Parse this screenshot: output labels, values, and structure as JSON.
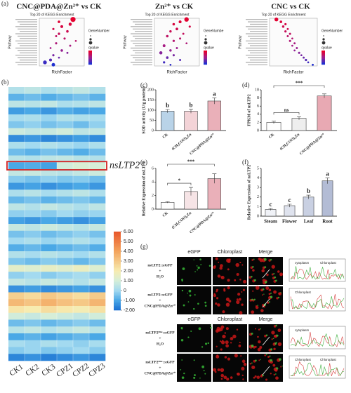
{
  "panel_labels": [
    "(a)",
    "(b)",
    "(c)",
    "(d)",
    "(e)",
    "(f)",
    "(g)"
  ],
  "chart_data": [
    {
      "type": "dot",
      "title": "CNC@PDA@Zn²⁺ vs CK",
      "subtitle": "Top 20 of KEGG Enrichment",
      "x_label": "RichFactor",
      "y_label": "Pathway",
      "size_legend": "GeneNumber",
      "color_legend": "qvalue",
      "values": [
        0.22,
        0.17,
        0.21,
        0.18,
        0.15,
        0.2,
        0.17,
        0.16,
        0.19,
        0.23,
        0.16,
        0.21,
        0.14,
        0.18,
        0.2,
        0.15,
        0.17,
        0.14,
        0.12,
        0.15
      ],
      "sizes": [
        60,
        20,
        30,
        25,
        15,
        20,
        18,
        12,
        15,
        10,
        14,
        12,
        10,
        20,
        12,
        15,
        10,
        25,
        40,
        35
      ],
      "qvalues": [
        0.01,
        0.03,
        0.05,
        0.06,
        0.08,
        0.1,
        0.12,
        0.14,
        0.15,
        0.17,
        0.2,
        0.22,
        0.24,
        0.27,
        0.3,
        0.33,
        0.36,
        0.4,
        0.45,
        0.5
      ],
      "xlim": [
        0.1,
        0.26
      ],
      "qlim": [
        0,
        0.5
      ]
    },
    {
      "type": "dot",
      "title": "Zn²⁺ vs CK",
      "subtitle": "Top 20 of KEGG Enrichment",
      "x_label": "RichFactor",
      "y_label": "Pathway",
      "size_legend": "GeneNumbe",
      "color_legend": "qvalue",
      "values": [
        0.2,
        0.18,
        0.16,
        0.21,
        0.17,
        0.15,
        0.19,
        0.14,
        0.18,
        0.16,
        0.2,
        0.13,
        0.17,
        0.15,
        0.12,
        0.16,
        0.14,
        0.18,
        0.13,
        0.15
      ],
      "sizes": [
        50,
        25,
        20,
        15,
        22,
        18,
        12,
        20,
        14,
        16,
        10,
        24,
        12,
        18,
        30,
        14,
        20,
        12,
        16,
        10
      ],
      "qvalues": [
        0.02,
        0.04,
        0.06,
        0.08,
        0.1,
        0.12,
        0.14,
        0.16,
        0.18,
        0.2,
        0.22,
        0.25,
        0.28,
        0.3,
        0.33,
        0.36,
        0.4,
        0.44,
        0.48,
        0.52
      ],
      "xlim": [
        0.1,
        0.24
      ],
      "qlim": [
        0,
        0.55
      ]
    },
    {
      "type": "dot",
      "title": "CNC vs CK",
      "subtitle": "Top 20 of KEGG Enrichment",
      "x_label": "RichFactor",
      "y_label": "Pathway",
      "size_legend": "GeneNumber",
      "color_legend": "qvalue",
      "values": [
        0.08,
        0.1,
        0.12,
        0.11,
        0.13,
        0.12,
        0.14,
        0.13,
        0.15,
        0.14,
        0.16,
        0.15,
        0.17,
        0.16,
        0.18,
        0.19,
        0.2,
        0.21,
        0.22,
        0.24
      ],
      "sizes": [
        40,
        20,
        15,
        18,
        12,
        16,
        14,
        12,
        10,
        14,
        12,
        10,
        12,
        10,
        14,
        10,
        12,
        16,
        10,
        12
      ],
      "qvalues": [
        0.02,
        0.05,
        0.07,
        0.09,
        0.1,
        0.12,
        0.14,
        0.16,
        0.18,
        0.2,
        0.22,
        0.24,
        0.26,
        0.28,
        0.3,
        0.33,
        0.36,
        0.4,
        0.44,
        0.5
      ],
      "xlim": [
        0.05,
        0.26
      ],
      "qlim": [
        0,
        0.5
      ]
    },
    {
      "type": "heatmap",
      "columns": [
        "CK1",
        "CK2",
        "CK3",
        "CPZ1",
        "CPZ2",
        "CPZ3"
      ],
      "highlight_label": "nsLTP2",
      "highlight_row": 11,
      "colorscale": [
        [
          -2,
          "#1a6fd1"
        ],
        [
          -1,
          "#4aa8e6"
        ],
        [
          0,
          "#a3daf0"
        ],
        [
          1,
          "#d6eed8"
        ],
        [
          2,
          "#f7ecb0"
        ],
        [
          4,
          "#f3a35c"
        ],
        [
          6,
          "#e8562a"
        ]
      ],
      "clim": [
        -2,
        6
      ],
      "cticks": [
        {
          "value": 6,
          "label": "6.00"
        },
        {
          "value": 5,
          "label": "5.00"
        },
        {
          "value": 4,
          "label": "4.00"
        },
        {
          "value": 3,
          "label": "3.00"
        },
        {
          "value": 2,
          "label": "2.00"
        },
        {
          "value": 1,
          "label": "1.00"
        },
        0,
        {
          "value": -1,
          "label": "-1.00"
        },
        {
          "value": -2,
          "label": "-2.00"
        }
      ],
      "values": [
        [
          0.3,
          0.5,
          0.2,
          0.4,
          0.6,
          0.3
        ],
        [
          -0.8,
          -0.6,
          -0.9,
          -0.7,
          -0.5,
          -0.8
        ],
        [
          0.5,
          0.4,
          0.6,
          0.2,
          0.3,
          0.5
        ],
        [
          -1.2,
          -1,
          -1.3,
          -0.9,
          -1.1,
          -1
        ],
        [
          0.1,
          0.2,
          -0.1,
          0.3,
          0.2,
          0.1
        ],
        [
          -0.4,
          -0.2,
          -0.5,
          -0.3,
          -0.6,
          -0.2
        ],
        [
          0.8,
          0.6,
          0.7,
          0.9,
          0.5,
          0.6
        ],
        [
          -1.5,
          -1.3,
          -1.6,
          -1.4,
          -1.2,
          -1.5
        ],
        [
          0.2,
          0,
          0.3,
          0.1,
          -0.1,
          0.2
        ],
        [
          -0.6,
          -0.8,
          -0.5,
          -0.7,
          -0.9,
          -0.6
        ],
        [
          0.4,
          0.3,
          0.5,
          0.6,
          0.4,
          0.3
        ],
        [
          -1,
          -0.9,
          -1.1,
          0.9,
          1.1,
          1
        ],
        [
          0.6,
          0.7,
          0.5,
          0.4,
          0.6,
          0.8
        ],
        [
          -0.3,
          -0.5,
          -0.2,
          -0.4,
          -0.3,
          -0.6
        ],
        [
          -1.3,
          -1.1,
          -1.4,
          -1.2,
          -1,
          -1.3
        ],
        [
          0.2,
          0.4,
          0.1,
          0.3,
          0.5,
          0.2
        ],
        [
          -0.7,
          -0.5,
          -0.8,
          -0.6,
          -0.4,
          -0.7
        ],
        [
          0.5,
          0.3,
          0.6,
          0.4,
          0.2,
          0.5
        ],
        [
          -0.2,
          -0.1,
          -0.3,
          0,
          -0.2,
          -0.1
        ],
        [
          -1.1,
          -1.3,
          -1,
          -1.2,
          -1.4,
          -1.1
        ],
        [
          0.7,
          0.5,
          0.8,
          0.6,
          0.4,
          0.7
        ],
        [
          -0.5,
          -0.3,
          -0.6,
          -0.4,
          -0.2,
          -0.5
        ],
        [
          0,
          0.2,
          -0.1,
          0.1,
          0.3,
          0
        ],
        [
          -0.9,
          -0.7,
          -1,
          -0.8,
          -0.6,
          -0.9
        ],
        [
          0.3,
          0.1,
          0.4,
          0.2,
          0,
          0.3
        ],
        [
          -0.4,
          -0.6,
          -0.3,
          -0.5,
          -0.7,
          -0.4
        ],
        [
          1.4,
          1.2,
          1.5,
          1.3,
          1.6,
          1.2
        ],
        [
          -0.2,
          0,
          -0.3,
          -0.1,
          0.1,
          -0.2
        ],
        [
          0.6,
          0.4,
          0.7,
          0.5,
          0.3,
          0.6
        ],
        [
          -1.4,
          -1.2,
          -1.5,
          -1.3,
          -1.1,
          -1.4
        ],
        [
          2.8,
          2.5,
          3,
          2.7,
          2.4,
          2.9
        ],
        [
          3.4,
          3.1,
          3.6,
          3.2,
          3,
          3.5
        ],
        [
          2.2,
          2,
          2.4,
          2.1,
          1.9,
          2.3
        ],
        [
          0.9,
          0.7,
          1,
          0.8,
          0.6,
          0.9
        ],
        [
          -0.6,
          -0.4,
          -0.7,
          -0.5,
          -0.3,
          -0.6
        ],
        [
          0.4,
          0.6,
          0.3,
          0.5,
          0.7,
          0.4
        ],
        [
          -1,
          -0.8,
          -1.1,
          -0.9,
          -0.7,
          -1
        ],
        [
          0.1,
          -0.1,
          0.2,
          0,
          -0.2,
          0.1
        ],
        [
          -0.3,
          -0.1,
          -0.4,
          -0.2,
          0,
          -0.3
        ],
        [
          -1.6,
          -1.4,
          -1.7,
          -1.5,
          -1.3,
          -1.6
        ]
      ]
    },
    {
      "type": "bar",
      "y_label": "SOD activity (U/g protein)",
      "categories": [
        "CK",
        "(CH₃COO)₂Zn",
        "CNC@PDA@Zn²⁺"
      ],
      "values": [
        95,
        95,
        145
      ],
      "errors": [
        8,
        10,
        15
      ],
      "letters": [
        "b",
        "b",
        "a"
      ],
      "colors": [
        "#b9d3e8",
        "#f3d3d7",
        "#eab0b9"
      ],
      "ylim": [
        0,
        200
      ],
      "yticks": [
        0,
        50,
        100,
        150,
        200
      ]
    },
    {
      "type": "bar",
      "y_label": "FPKM of nsLTP2",
      "categories": [
        "CK",
        "(CH₃COO)₂Zn",
        "CNC@PDA@Zn²⁺"
      ],
      "values": [
        2,
        3,
        8.5
      ],
      "errors": [
        0.3,
        0.4,
        0.5
      ],
      "colors": [
        "#ffffff",
        "#eeeeee",
        "#e8a9b3"
      ],
      "comparisons": [
        {
          "label": "ns",
          "from": 0,
          "to": 1
        },
        {
          "label": "***",
          "from": 0,
          "to": 2
        }
      ],
      "ylim": [
        0,
        10
      ],
      "yticks": [
        0,
        2,
        4,
        6,
        8,
        10
      ]
    },
    {
      "type": "bar",
      "y_label": "Relative Expression of nsLTP2",
      "categories": [
        "CK",
        "(CH₃COO)₂Zn",
        "CNC@PDA@Zn²⁺"
      ],
      "values": [
        1,
        2.6,
        4.5
      ],
      "errors": [
        0.1,
        0.6,
        0.7
      ],
      "colors": [
        "#ffffff",
        "#f6e4e6",
        "#eab0b9"
      ],
      "comparisons": [
        {
          "label": "*",
          "from": 0,
          "to": 1
        },
        {
          "label": "***",
          "from": 0,
          "to": 2
        }
      ],
      "ylim": [
        0,
        6
      ],
      "yticks": [
        0,
        2,
        4,
        6
      ]
    },
    {
      "type": "bar",
      "y_label": "Relative Expression of nsLTP2",
      "categories": [
        "Steam",
        "Flower",
        "Leaf",
        "Root"
      ],
      "values": [
        0.7,
        1.1,
        2,
        3.7
      ],
      "errors": [
        0.1,
        0.15,
        0.2,
        0.3
      ],
      "letters": [
        "c",
        "c",
        "b",
        "a"
      ],
      "colors": [
        "#f0f2f7",
        "#dfe3ee",
        "#c9d0e2",
        "#b3bcd5"
      ],
      "ylim": [
        0,
        5
      ],
      "yticks": [
        0,
        1,
        2,
        3,
        4,
        5
      ]
    }
  ],
  "panel_g": {
    "columns": [
      "eGFP",
      "Chloroplast",
      "Merge"
    ],
    "rows": [
      {
        "label": [
          "nsLTP2::eGFP",
          "+",
          "H₂O"
        ],
        "plot_labels": [
          "cytoplasm",
          "Chloroplast"
        ]
      },
      {
        "label": [
          "nsLTP2::eGFP",
          "+",
          "CNC@PDA@Zn²⁺"
        ],
        "plot_labels": [
          "Chloroplast"
        ]
      },
      {
        "label": [
          "nsLTP2ᴹᵘᵗ::eGFP",
          "+",
          "H₂O"
        ],
        "plot_labels": [
          "cytoplasm"
        ]
      },
      {
        "label": [
          "nsLTP2ᴹᵘᵗ::eGFP",
          "+",
          "CNC@PDA@Zn²⁺"
        ],
        "plot_labels": [
          "Chloroplast",
          "Chloroplast"
        ]
      }
    ]
  }
}
